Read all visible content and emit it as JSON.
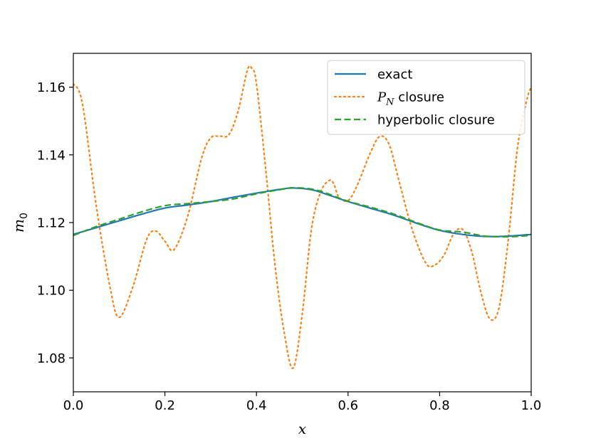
{
  "chart_data": {
    "type": "line",
    "title": "",
    "xlabel": "x",
    "ylabel_base": "m",
    "ylabel_sub": "0",
    "xlim": [
      0.0,
      1.0
    ],
    "ylim": [
      1.07,
      1.17
    ],
    "grid": false,
    "legend_placement": "top-right",
    "xticks": [
      0.0,
      0.2,
      0.4,
      0.6,
      0.8,
      1.0
    ],
    "xtick_labels": [
      "0.0",
      "0.2",
      "0.4",
      "0.6",
      "0.8",
      "1.0"
    ],
    "yticks": [
      1.08,
      1.1,
      1.12,
      1.14,
      1.16
    ],
    "ytick_labels": [
      "1.08",
      "1.10",
      "1.12",
      "1.14",
      "1.16"
    ],
    "series": [
      {
        "name": "exact",
        "color": "#1f77b4",
        "style": "solid",
        "x": [
          0.0,
          0.05,
          0.1,
          0.15,
          0.2,
          0.25,
          0.3,
          0.35,
          0.4,
          0.45,
          0.48,
          0.52,
          0.55,
          0.6,
          0.65,
          0.7,
          0.75,
          0.8,
          0.85,
          0.9,
          0.95,
          1.0
        ],
        "y": [
          1.1165,
          1.1185,
          1.1205,
          1.1225,
          1.1243,
          1.1252,
          1.1262,
          1.1275,
          1.1287,
          1.1298,
          1.1302,
          1.1297,
          1.1285,
          1.1262,
          1.1242,
          1.1222,
          1.1198,
          1.1177,
          1.1165,
          1.1159,
          1.116,
          1.1165
        ]
      },
      {
        "name": "P_N closure",
        "color": "#ff7f0e",
        "style": "dotted",
        "x": [
          0.0,
          0.02,
          0.05,
          0.08,
          0.1,
          0.13,
          0.16,
          0.18,
          0.2,
          0.22,
          0.25,
          0.28,
          0.3,
          0.32,
          0.34,
          0.36,
          0.38,
          0.39,
          0.4,
          0.42,
          0.44,
          0.46,
          0.48,
          0.5,
          0.52,
          0.54,
          0.56,
          0.57,
          0.58,
          0.6,
          0.62,
          0.65,
          0.67,
          0.69,
          0.71,
          0.74,
          0.77,
          0.79,
          0.81,
          0.83,
          0.85,
          0.87,
          0.89,
          0.91,
          0.93,
          0.95,
          0.97,
          0.99,
          1.0
        ],
        "y": [
          1.161,
          1.155,
          1.125,
          1.101,
          1.092,
          1.101,
          1.115,
          1.1175,
          1.1145,
          1.112,
          1.122,
          1.139,
          1.145,
          1.1455,
          1.146,
          1.153,
          1.165,
          1.1655,
          1.161,
          1.136,
          1.108,
          1.088,
          1.077,
          1.093,
          1.118,
          1.129,
          1.1325,
          1.131,
          1.1275,
          1.1265,
          1.131,
          1.141,
          1.1455,
          1.143,
          1.133,
          1.118,
          1.108,
          1.1075,
          1.1105,
          1.1165,
          1.118,
          1.1115,
          1.0995,
          1.0915,
          1.095,
          1.115,
          1.142,
          1.156,
          1.16
        ]
      },
      {
        "name": "hyperbolic closure",
        "color": "#2ca02c",
        "style": "dashed",
        "x": [
          0.0,
          0.05,
          0.1,
          0.15,
          0.2,
          0.25,
          0.3,
          0.35,
          0.4,
          0.45,
          0.48,
          0.52,
          0.55,
          0.6,
          0.65,
          0.7,
          0.75,
          0.8,
          0.85,
          0.9,
          0.95,
          1.0
        ],
        "y": [
          1.1162,
          1.1188,
          1.121,
          1.1232,
          1.125,
          1.1256,
          1.1262,
          1.127,
          1.1285,
          1.1297,
          1.1303,
          1.1299,
          1.1288,
          1.1263,
          1.1245,
          1.1225,
          1.12,
          1.1178,
          1.1172,
          1.116,
          1.1158,
          1.1162
        ]
      }
    ]
  }
}
